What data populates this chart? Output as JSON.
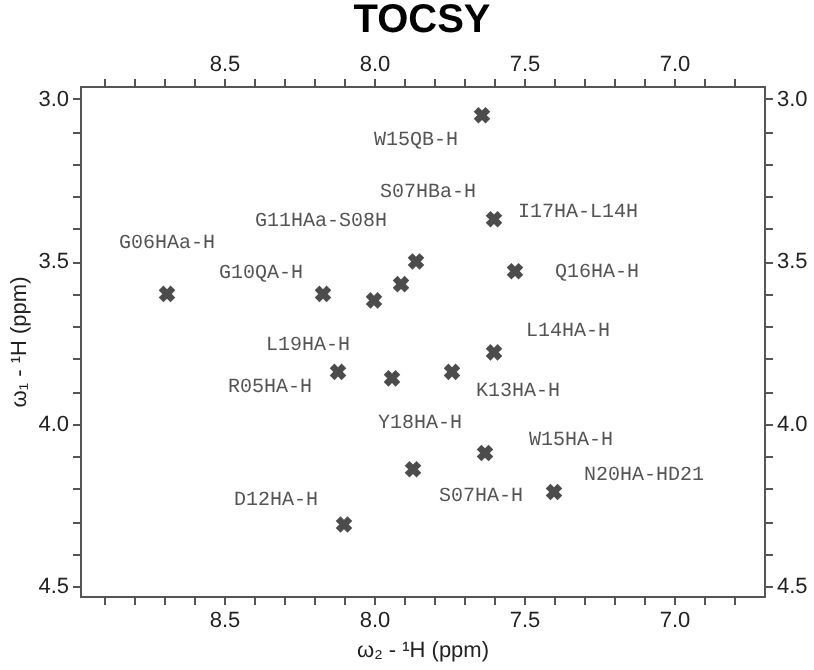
{
  "chart_data": {
    "type": "scatter",
    "title": "TOCSY",
    "xlabel": "ω₂ - ¹H (ppm)",
    "ylabel": "ω₁ - ¹H (ppm)",
    "x": [
      7.64,
      7.6,
      8.69,
      8.17,
      8.0,
      7.91,
      7.86,
      7.53,
      7.6,
      7.74,
      7.94,
      8.12,
      7.63,
      7.87,
      7.4,
      8.1
    ],
    "series": [
      {
        "color": "#000000",
        "values": [
          3.05,
          3.37,
          3.6,
          3.6,
          3.62,
          3.57,
          3.5,
          3.53,
          3.78,
          3.84,
          3.86,
          3.84,
          4.09,
          4.14,
          4.21,
          4.31
        ]
      }
    ],
    "marker": "cross",
    "grid": false,
    "xlim": [
      8.98,
      6.7
    ],
    "x2lim": [
      8.98,
      6.7
    ],
    "ylim": [
      4.53,
      2.96
    ],
    "y2lim": [
      4.53,
      2.96
    ],
    "xticks": [
      {
        "value": 8.9,
        "label": null
      },
      {
        "value": 8.8,
        "label": null
      },
      {
        "value": 8.7,
        "label": null
      },
      {
        "value": 8.6,
        "label": null
      },
      8.5,
      {
        "value": 8.4,
        "label": null
      },
      {
        "value": 8.3,
        "label": null
      },
      {
        "value": 8.2,
        "label": null
      },
      {
        "value": 8.1,
        "label": null
      },
      {
        "value": 8,
        "label": "8.0"
      },
      {
        "value": 7.9,
        "label": null
      },
      {
        "value": 7.8,
        "label": null
      },
      {
        "value": 7.7,
        "label": null
      },
      {
        "value": 7.6,
        "label": null
      },
      7.5,
      {
        "value": 7.4,
        "label": null
      },
      {
        "value": 7.3,
        "label": null
      },
      {
        "value": 7.2,
        "label": null
      },
      {
        "value": 7.1,
        "label": null
      },
      {
        "value": 7,
        "label": "7.0"
      },
      {
        "value": 6.9,
        "label": null
      },
      {
        "value": 6.8,
        "label": null
      }
    ],
    "x2ticks": [
      {
        "value": 8.9,
        "label": null
      },
      {
        "value": 8.8,
        "label": null
      },
      {
        "value": 8.7,
        "label": null
      },
      {
        "value": 8.6,
        "label": null
      },
      8.5,
      {
        "value": 8.4,
        "label": null
      },
      {
        "value": 8.3,
        "label": null
      },
      {
        "value": 8.2,
        "label": null
      },
      {
        "value": 8.1,
        "label": null
      },
      {
        "value": 8,
        "label": "8.0"
      },
      {
        "value": 7.9,
        "label": null
      },
      {
        "value": 7.8,
        "label": null
      },
      {
        "value": 7.7,
        "label": null
      },
      {
        "value": 7.6,
        "label": null
      },
      7.5,
      {
        "value": 7.4,
        "label": null
      },
      {
        "value": 7.3,
        "label": null
      },
      {
        "value": 7.2,
        "label": null
      },
      {
        "value": 7.1,
        "label": null
      },
      {
        "value": 7,
        "label": "7.0"
      },
      {
        "value": 6.9,
        "label": null
      },
      {
        "value": 6.8,
        "label": null
      }
    ],
    "yticks": [
      {
        "value": 3,
        "label": "3.0"
      },
      {
        "value": 3.1,
        "label": null
      },
      {
        "value": 3.2,
        "label": null
      },
      {
        "value": 3.3,
        "label": null
      },
      {
        "value": 3.4,
        "label": null
      },
      3.5,
      {
        "value": 3.6,
        "label": null
      },
      {
        "value": 3.7,
        "label": null
      },
      {
        "value": 3.8,
        "label": null
      },
      {
        "value": 3.9,
        "label": null
      },
      {
        "value": 4,
        "label": "4.0"
      },
      {
        "value": 4.1,
        "label": null
      },
      {
        "value": 4.2,
        "label": null
      },
      {
        "value": 4.3,
        "label": null
      },
      {
        "value": 4.4,
        "label": null
      },
      4.5
    ],
    "y2ticks": [
      {
        "value": 3,
        "label": "3.0"
      },
      {
        "value": 3.1,
        "label": null
      },
      {
        "value": 3.2,
        "label": null
      },
      {
        "value": 3.3,
        "label": null
      },
      {
        "value": 3.4,
        "label": null
      },
      3.5,
      {
        "value": 3.6,
        "label": null
      },
      {
        "value": 3.7,
        "label": null
      },
      {
        "value": 3.8,
        "label": null
      },
      {
        "value": 3.9,
        "label": null
      },
      {
        "value": 4,
        "label": "4.0"
      },
      {
        "value": 4.1,
        "label": null
      },
      {
        "value": 4.2,
        "label": null
      },
      {
        "value": 4.3,
        "label": null
      },
      {
        "value": 4.4,
        "label": null
      },
      4.5
    ],
    "annotations": [
      {
        "text": "W15QB-H",
        "x": 7.64,
        "y": 3.05
      },
      {
        "text": "I17HA-L14H",
        "x": 7.6,
        "y": 3.37
      },
      {
        "text": "G06HAa-H",
        "x": 8.69,
        "y": 3.6
      },
      {
        "text": "G10QA-H",
        "x": 8.17,
        "y": 3.6
      },
      {
        "text": "L19HA-H",
        "x": 8.0,
        "y": 3.62
      },
      {
        "text": "G11HAa-S08H",
        "x": 7.91,
        "y": 3.57
      },
      {
        "text": "S07HBa-H",
        "x": 7.86,
        "y": 3.5
      },
      {
        "text": "Q16HA-H",
        "x": 7.53,
        "y": 3.53
      },
      {
        "text": "L14HA-H",
        "x": 7.6,
        "y": 3.78
      },
      {
        "text": "K13HA-H",
        "x": 7.74,
        "y": 3.84
      },
      {
        "text": "Y18HA-H",
        "x": 7.94,
        "y": 3.86
      },
      {
        "text": "R05HA-H",
        "x": 8.12,
        "y": 3.84
      },
      {
        "text": "W15HA-H",
        "x": 7.63,
        "y": 4.09
      },
      {
        "text": "S07HA-H",
        "x": 7.87,
        "y": 4.14
      },
      {
        "text": "N20HA-HD21",
        "x": 7.4,
        "y": 4.21
      },
      {
        "text": "D12HA-H",
        "x": 8.1,
        "y": 4.31
      }
    ]
  }
}
